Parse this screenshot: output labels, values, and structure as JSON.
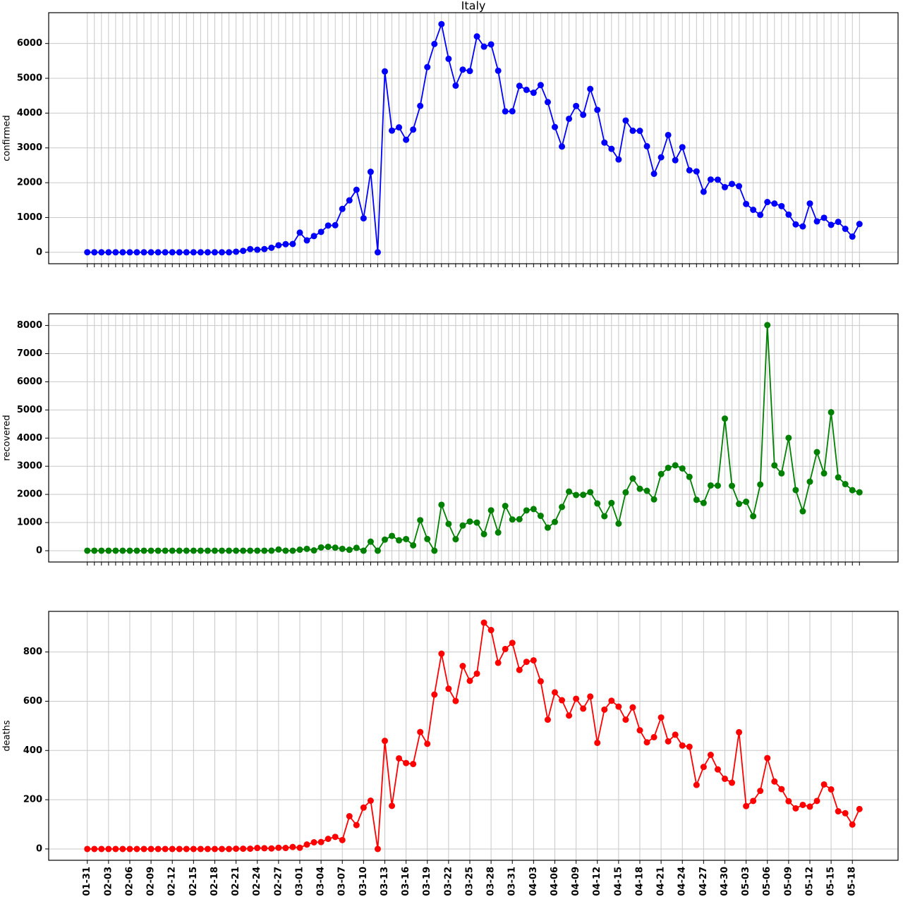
{
  "chart_data": [
    {
      "type": "line",
      "title": "Italy",
      "ylabel": "confirmed",
      "ylim": [
        -328,
        6885
      ],
      "yticks": [
        0,
        1000,
        2000,
        3000,
        4000,
        5000,
        6000
      ],
      "grid": true,
      "series": [
        {
          "color": "#0000ff",
          "values": [
            2,
            0,
            0,
            0,
            0,
            0,
            0,
            1,
            0,
            0,
            0,
            0,
            0,
            0,
            0,
            0,
            0,
            0,
            0,
            0,
            0,
            17,
            42,
            93,
            74,
            93,
            131,
            202,
            233,
            240,
            566,
            342,
            466,
            587,
            769,
            778,
            1247,
            1492,
            1797,
            977,
            2313,
            0,
            5198,
            3497,
            3590,
            3233,
            3526,
            4207,
            5322,
            5986,
            6557,
            5560,
            4789,
            5249,
            5210,
            6203,
            5909,
            5974,
            5217,
            4050,
            4053,
            4782,
            4668,
            4585,
            4805,
            4316,
            3599,
            3039,
            3836,
            4204,
            3951,
            4694,
            4092,
            3153,
            2972,
            2667,
            3786,
            3493,
            3491,
            3047,
            2256,
            2729,
            3370,
            2646,
            3021,
            2357,
            2324,
            1739,
            2091,
            2086,
            1872,
            1965,
            1900,
            1389,
            1221,
            1075,
            1444,
            1401,
            1327,
            1083,
            802,
            744,
            1402,
            888,
            992,
            789,
            875,
            675,
            451,
            813
          ]
        }
      ]
    },
    {
      "type": "line",
      "ylabel": "recovered",
      "ylim": [
        -401,
        8415
      ],
      "yticks": [
        0,
        1000,
        2000,
        3000,
        4000,
        5000,
        6000,
        7000,
        8000
      ],
      "grid": true,
      "series": [
        {
          "color": "#008000",
          "values": [
            0,
            0,
            0,
            0,
            0,
            0,
            0,
            0,
            0,
            0,
            0,
            0,
            0,
            0,
            0,
            0,
            0,
            0,
            0,
            0,
            0,
            0,
            1,
            0,
            0,
            0,
            2,
            42,
            1,
            0,
            37,
            66,
            11,
            116,
            138,
            109,
            66,
            33,
            102,
            0,
            321,
            0,
            394,
            527,
            369,
            414,
            192,
            1084,
            415,
            0,
            1632,
            952,
            408,
            894,
            1036,
            999,
            589,
            1434,
            646,
            1590,
            1109,
            1118,
            1431,
            1480,
            1238,
            819,
            1022,
            1555,
            2099,
            1979,
            1985,
            2079,
            1677,
            1224,
            1695,
            962,
            2072,
            2563,
            2200,
            2128,
            1822,
            2723,
            2943,
            3033,
            2922,
            2622,
            1808,
            1696,
            2317,
            2311,
            4693,
            2304,
            1665,
            1740,
            1225,
            2352,
            8014,
            3031,
            2747,
            4008,
            2155,
            1401,
            2452,
            3502,
            2747,
            4917,
            2605,
            2366,
            2150,
            2075
          ]
        }
      ]
    },
    {
      "type": "line",
      "ylabel": "deaths",
      "ylim": [
        -46,
        965
      ],
      "yticks": [
        0,
        200,
        400,
        600,
        800
      ],
      "grid": true,
      "categories": [
        "01-31",
        null,
        null,
        "02-03",
        null,
        null,
        "02-06",
        null,
        null,
        "02-09",
        null,
        null,
        "02-12",
        null,
        null,
        "02-15",
        null,
        null,
        "02-18",
        null,
        null,
        "02-21",
        null,
        null,
        "02-24",
        null,
        null,
        "02-27",
        null,
        null,
        "03-01",
        null,
        null,
        "03-04",
        null,
        null,
        "03-07",
        null,
        null,
        "03-10",
        null,
        null,
        "03-13",
        null,
        null,
        "03-16",
        null,
        null,
        "03-19",
        null,
        null,
        "03-22",
        null,
        null,
        "03-25",
        null,
        null,
        "03-28",
        null,
        null,
        "03-31",
        null,
        null,
        "04-03",
        null,
        null,
        "04-06",
        null,
        null,
        "04-09",
        null,
        null,
        "04-12",
        null,
        null,
        "04-15",
        null,
        null,
        "04-18",
        null,
        null,
        "04-21",
        null,
        null,
        "04-24",
        null,
        null,
        "04-27",
        null,
        null,
        "04-30",
        null,
        null,
        "05-03",
        null,
        null,
        "05-06",
        null,
        null,
        "05-09",
        null,
        null,
        "05-12",
        null,
        null,
        "05-15",
        null,
        null,
        "05-18",
        null
      ],
      "series": [
        {
          "color": "#ff0000",
          "values": [
            0,
            0,
            0,
            0,
            0,
            0,
            0,
            0,
            0,
            0,
            0,
            0,
            0,
            0,
            0,
            0,
            0,
            0,
            0,
            0,
            0,
            1,
            1,
            1,
            4,
            3,
            2,
            5,
            4,
            8,
            5,
            18,
            27,
            28,
            41,
            49,
            36,
            133,
            97,
            168,
            196,
            0,
            439,
            175,
            368,
            349,
            345,
            475,
            427,
            627,
            793,
            651,
            601,
            743,
            683,
            712,
            919,
            889,
            756,
            812,
            837,
            727,
            760,
            766,
            681,
            525,
            636,
            604,
            542,
            610,
            570,
            619,
            431,
            566,
            602,
            578,
            525,
            575,
            482,
            433,
            454,
            534,
            437,
            464,
            420,
            415,
            260,
            333,
            382,
            323,
            285,
            269,
            474,
            174,
            195,
            236,
            369,
            274,
            243,
            194,
            165,
            179,
            172,
            195,
            262,
            242,
            153,
            145,
            99,
            162
          ]
        }
      ]
    }
  ]
}
